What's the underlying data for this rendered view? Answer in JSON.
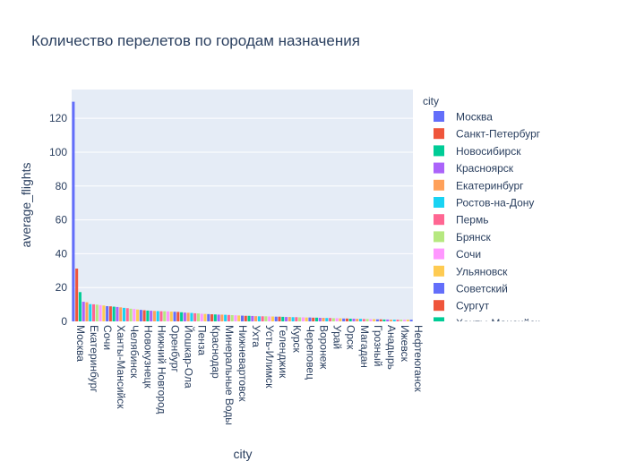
{
  "chart_data": {
    "type": "bar",
    "title": "Количество перелетов по городам назначения",
    "xlabel": "city",
    "ylabel": "average_flights",
    "ylim": [
      0,
      137
    ],
    "yticks": [
      0,
      20,
      40,
      60,
      80,
      100,
      120
    ],
    "grid": true,
    "legend": {
      "title": "city",
      "position": "right",
      "items": [
        {
          "name": "Москва",
          "color": "#636efa"
        },
        {
          "name": "Санкт-Петербург",
          "color": "#EF553B"
        },
        {
          "name": "Новосибирск",
          "color": "#00cc96"
        },
        {
          "name": "Красноярск",
          "color": "#ab63fa"
        },
        {
          "name": "Екатеринбург",
          "color": "#FFA15A"
        },
        {
          "name": "Ростов-на-Дону",
          "color": "#19d3f3"
        },
        {
          "name": "Пермь",
          "color": "#FF6692"
        },
        {
          "name": "Брянск",
          "color": "#B6E880"
        },
        {
          "name": "Сочи",
          "color": "#FF97FF"
        },
        {
          "name": "Ульяновск",
          "color": "#FECB52"
        },
        {
          "name": "Советский",
          "color": "#636efa"
        },
        {
          "name": "Сургут",
          "color": "#EF553B"
        },
        {
          "name": "Ханты-Мансийск",
          "color": "#00cc96"
        }
      ]
    },
    "palette": [
      "#636efa",
      "#EF553B",
      "#00cc96",
      "#ab63fa",
      "#FFA15A",
      "#19d3f3",
      "#FF6692",
      "#B6E880",
      "#FF97FF",
      "#FECB52"
    ],
    "visible_tick_labels": [
      "Москва",
      "Екатеринбург",
      "Сочи",
      "Ханты-Мансийск",
      "Челябинск",
      "Новокузнецк",
      "Нижний Новгород",
      "Оренбург",
      "Йошкар-Ола",
      "Пенза",
      "Краснодар",
      "Минеральные Воды",
      "Нижневартовск",
      "Ухта",
      "Усть-Илимск",
      "Геленджик",
      "Курск",
      "Череповец",
      "Воронеж",
      "Урай",
      "Орск",
      "Магадан",
      "Грозный",
      "Анадырь",
      "Ижевск",
      "Нефтеюганск"
    ],
    "n_categories": 101,
    "values": [
      129.8,
      31.2,
      17.3,
      11.6,
      11.3,
      10.2,
      10.1,
      9.9,
      9.6,
      9.4,
      9.0,
      8.9,
      8.7,
      8.5,
      8.3,
      8.0,
      7.8,
      7.5,
      7.3,
      7.0,
      6.8,
      6.6,
      6.4,
      6.3,
      6.2,
      6.1,
      6.0,
      6.0,
      5.9,
      5.8,
      5.7,
      5.6,
      5.4,
      5.2,
      5.1,
      5.0,
      4.8,
      4.7,
      4.5,
      4.4,
      4.3,
      4.2,
      4.1,
      4.0,
      4.0,
      3.9,
      3.8,
      3.7,
      3.6,
      3.5,
      3.4,
      3.3,
      3.3,
      3.2,
      3.1,
      3.0,
      3.0,
      3.0,
      2.9,
      2.9,
      2.8,
      2.8,
      2.7,
      2.6,
      2.6,
      2.5,
      2.5,
      2.4,
      2.4,
      2.3,
      2.3,
      2.2,
      2.2,
      2.1,
      2.1,
      2.0,
      2.0,
      1.9,
      1.9,
      1.8,
      1.7,
      1.7,
      1.6,
      1.6,
      1.5,
      1.5,
      1.4,
      1.4,
      1.3,
      1.3,
      1.2,
      1.2,
      1.1,
      1.1,
      1.0,
      1.0,
      1.0,
      1.0,
      1.0,
      1.0,
      1.0
    ]
  }
}
